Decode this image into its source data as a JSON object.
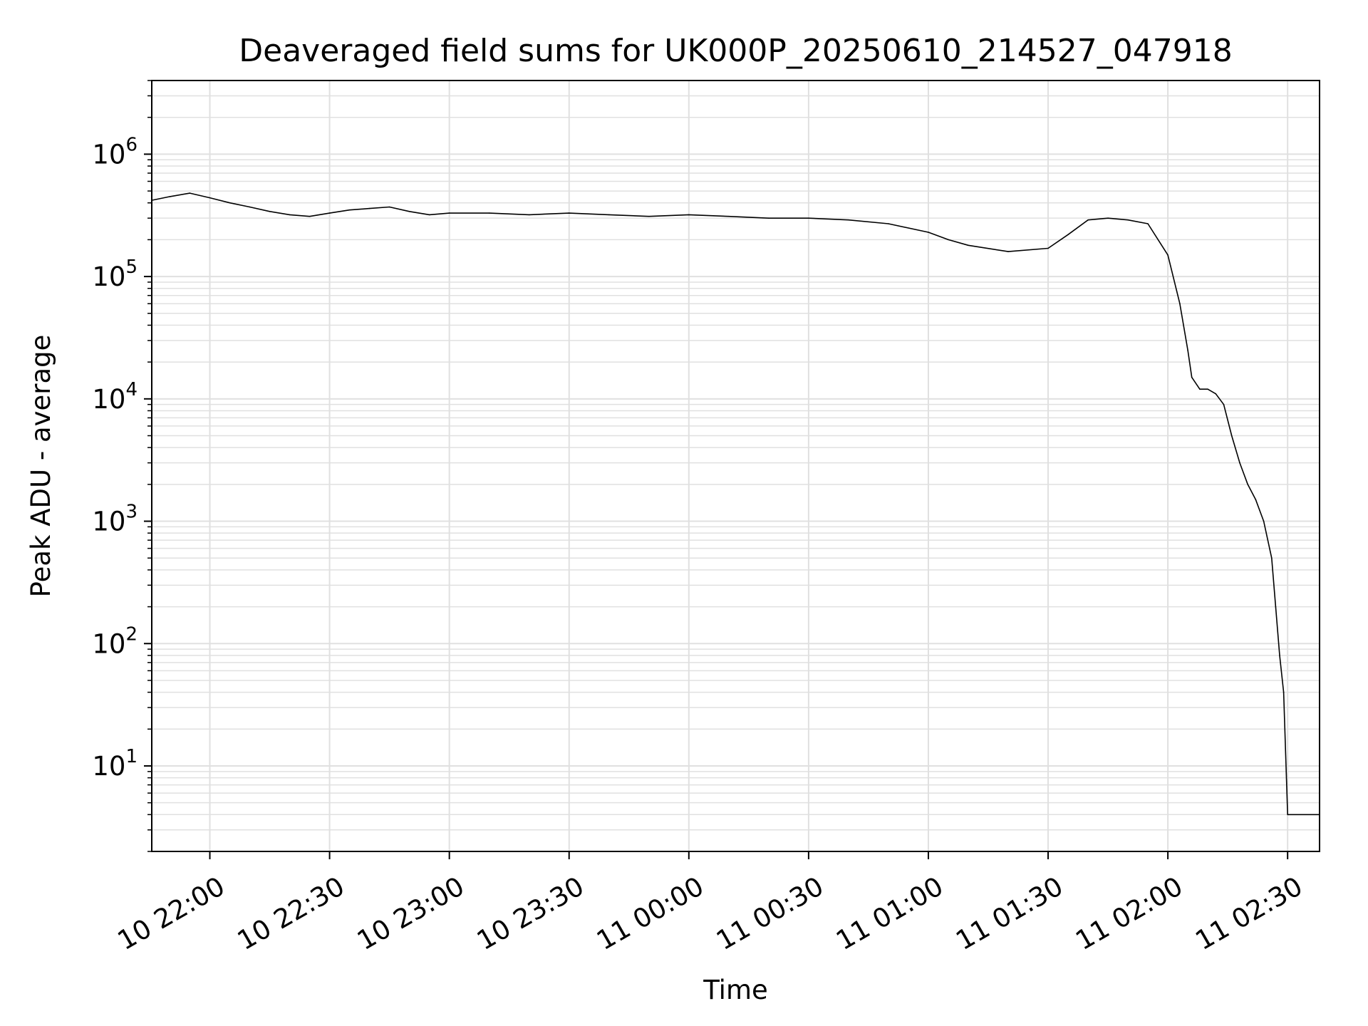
{
  "chart_data": {
    "type": "line",
    "title": "Deaveraged field sums for UK000P_20250610_214527_047918",
    "xlabel": "Time",
    "ylabel": "Peak ADU - average",
    "y_scale": "log",
    "grid": true,
    "grid_minor_y": true,
    "line_color": "#000000",
    "grid_color": "#e0e0e0",
    "xlim": [
      "2025-06-10 21:45:27",
      "2025-06-11 02:38:00"
    ],
    "ylim": [
      2,
      4000000
    ],
    "x_tick_labels": [
      "10 22:00",
      "10 22:30",
      "10 23:00",
      "10 23:30",
      "11 00:00",
      "11 00:30",
      "11 01:00",
      "11 01:30",
      "11 02:00",
      "11 02:30"
    ],
    "x_ticks": [
      "2025-06-10 22:00",
      "2025-06-10 22:30",
      "2025-06-10 23:00",
      "2025-06-10 23:30",
      "2025-06-11 00:00",
      "2025-06-11 00:30",
      "2025-06-11 01:00",
      "2025-06-11 01:30",
      "2025-06-11 02:00",
      "2025-06-11 02:30"
    ],
    "y_ticks": [
      {
        "base": "10",
        "exp": "1",
        "value": 10
      },
      {
        "base": "10",
        "exp": "2",
        "value": 100
      },
      {
        "base": "10",
        "exp": "3",
        "value": 1000
      },
      {
        "base": "10",
        "exp": "4",
        "value": 10000
      },
      {
        "base": "10",
        "exp": "5",
        "value": 100000
      },
      {
        "base": "10",
        "exp": "6",
        "value": 1000000
      }
    ],
    "series": [
      {
        "points": [
          [
            "2025-06-10 21:45:27",
            420000
          ],
          [
            "2025-06-10 21:50:00",
            450000
          ],
          [
            "2025-06-10 21:55:00",
            480000
          ],
          [
            "2025-06-10 22:00:00",
            440000
          ],
          [
            "2025-06-10 22:05:00",
            400000
          ],
          [
            "2025-06-10 22:10:00",
            370000
          ],
          [
            "2025-06-10 22:15:00",
            340000
          ],
          [
            "2025-06-10 22:20:00",
            320000
          ],
          [
            "2025-06-10 22:25:00",
            310000
          ],
          [
            "2025-06-10 22:30:00",
            330000
          ],
          [
            "2025-06-10 22:35:00",
            350000
          ],
          [
            "2025-06-10 22:40:00",
            360000
          ],
          [
            "2025-06-10 22:45:00",
            370000
          ],
          [
            "2025-06-10 22:50:00",
            340000
          ],
          [
            "2025-06-10 22:55:00",
            320000
          ],
          [
            "2025-06-10 23:00:00",
            330000
          ],
          [
            "2025-06-10 23:10:00",
            330000
          ],
          [
            "2025-06-10 23:20:00",
            320000
          ],
          [
            "2025-06-10 23:30:00",
            330000
          ],
          [
            "2025-06-10 23:40:00",
            320000
          ],
          [
            "2025-06-10 23:50:00",
            310000
          ],
          [
            "2025-06-11 00:00:00",
            320000
          ],
          [
            "2025-06-11 00:10:00",
            310000
          ],
          [
            "2025-06-11 00:20:00",
            300000
          ],
          [
            "2025-06-11 00:30:00",
            300000
          ],
          [
            "2025-06-11 00:40:00",
            290000
          ],
          [
            "2025-06-11 00:50:00",
            270000
          ],
          [
            "2025-06-11 01:00:00",
            230000
          ],
          [
            "2025-06-11 01:05:00",
            200000
          ],
          [
            "2025-06-11 01:10:00",
            180000
          ],
          [
            "2025-06-11 01:20:00",
            160000
          ],
          [
            "2025-06-11 01:30:00",
            170000
          ],
          [
            "2025-06-11 01:35:00",
            220000
          ],
          [
            "2025-06-11 01:40:00",
            290000
          ],
          [
            "2025-06-11 01:45:00",
            300000
          ],
          [
            "2025-06-11 01:50:00",
            290000
          ],
          [
            "2025-06-11 01:55:00",
            270000
          ],
          [
            "2025-06-11 02:00:00",
            150000
          ],
          [
            "2025-06-11 02:03:00",
            60000
          ],
          [
            "2025-06-11 02:05:00",
            25000
          ],
          [
            "2025-06-11 02:06:00",
            15000
          ],
          [
            "2025-06-11 02:08:00",
            12000
          ],
          [
            "2025-06-11 02:10:00",
            12000
          ],
          [
            "2025-06-11 02:12:00",
            11000
          ],
          [
            "2025-06-11 02:14:00",
            9000
          ],
          [
            "2025-06-11 02:16:00",
            5000
          ],
          [
            "2025-06-11 02:18:00",
            3000
          ],
          [
            "2025-06-11 02:20:00",
            2000
          ],
          [
            "2025-06-11 02:22:00",
            1500
          ],
          [
            "2025-06-11 02:24:00",
            1000
          ],
          [
            "2025-06-11 02:26:00",
            500
          ],
          [
            "2025-06-11 02:27:00",
            200
          ],
          [
            "2025-06-11 02:28:00",
            80
          ],
          [
            "2025-06-11 02:29:00",
            40
          ],
          [
            "2025-06-11 02:30:00",
            4
          ],
          [
            "2025-06-11 02:38:00",
            4
          ]
        ]
      }
    ]
  }
}
